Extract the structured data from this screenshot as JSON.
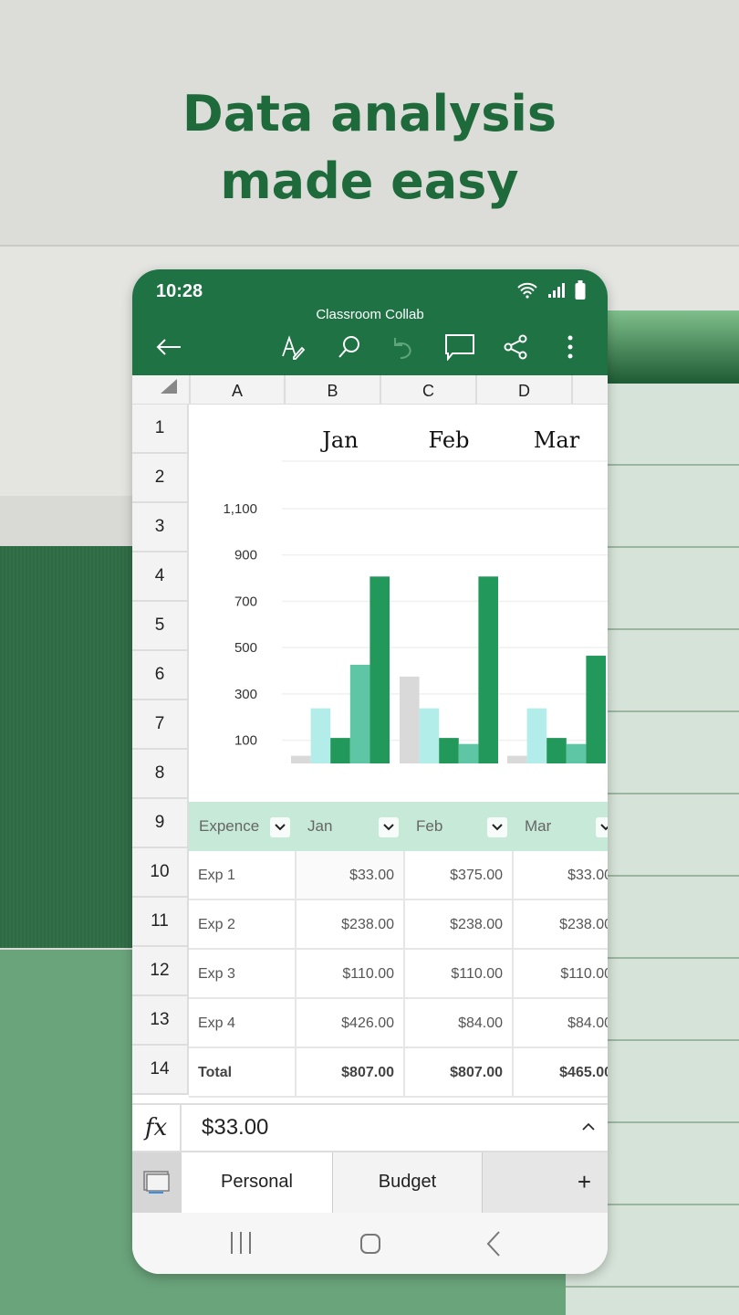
{
  "headline": [
    "Data analysis",
    "made easy"
  ],
  "status_bar": {
    "time": "10:28"
  },
  "app_bar": {
    "doc_title": "Classroom Collab",
    "icons": [
      "back-arrow-icon",
      "draw-pen-icon",
      "search-icon",
      "undo-icon",
      "comment-icon",
      "share-icon",
      "more-vertical-icon"
    ]
  },
  "columns": [
    "A",
    "B",
    "C",
    "D"
  ],
  "rows": [
    "1",
    "2",
    "3",
    "4",
    "5",
    "6",
    "7",
    "8",
    "9",
    "10",
    "11",
    "12",
    "13",
    "14"
  ],
  "chart_data": {
    "type": "bar",
    "categories": [
      "Jan",
      "Feb",
      "Mar"
    ],
    "yticks": [
      "1,100",
      "900",
      "700",
      "500",
      "300",
      "100"
    ],
    "ylim": [
      0,
      1100
    ],
    "grid": true,
    "series": [
      {
        "values": [
          33,
          375,
          33
        ],
        "color": "#d9d9d9"
      },
      {
        "values": [
          238,
          238,
          238
        ],
        "color": "#b3ede9"
      },
      {
        "values": [
          110,
          110,
          110
        ],
        "color": "#22985a"
      },
      {
        "values": [
          426,
          84,
          84
        ],
        "color": "#5fc6a5"
      },
      {
        "values": [
          807,
          807,
          465
        ],
        "color": "#22985a"
      }
    ]
  },
  "table": {
    "headers": [
      "Expence",
      "Jan",
      "Feb",
      "Mar"
    ],
    "rows": [
      [
        "Exp 1",
        "$33.00",
        "$375.00",
        "$33.00"
      ],
      [
        "Exp 2",
        "$238.00",
        "$238.00",
        "$238.00"
      ],
      [
        "Exp 3",
        "$110.00",
        "$110.00",
        "$110.00"
      ],
      [
        "Exp 4",
        "$426.00",
        "$84.00",
        "$84.00"
      ],
      [
        "Total",
        "$807.00",
        "$807.00",
        "$465.00"
      ]
    ]
  },
  "formula_bar": {
    "label": "fx",
    "value": "$33.00"
  },
  "sheet_tabs": [
    "Personal",
    "Budget"
  ],
  "add_sheet": "+"
}
